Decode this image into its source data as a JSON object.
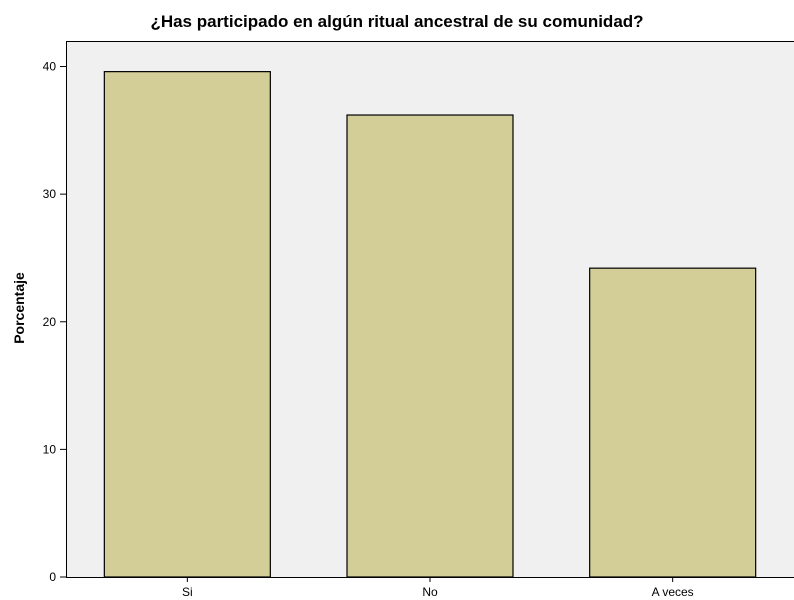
{
  "chart_data": {
    "type": "bar",
    "title": "¿Has participado en algún ritual ancestral de su comunidad?",
    "xlabel": "",
    "ylabel": "Porcentaje",
    "categories": [
      "Si",
      "No",
      "A veces"
    ],
    "values": [
      39.6,
      36.2,
      24.2
    ],
    "ylim": [
      0,
      42
    ],
    "yticks": [
      0,
      10,
      20,
      30,
      40
    ],
    "grid": false,
    "colors": {
      "bar_fill": "#d3cd97",
      "bar_stroke": "#000000",
      "plot_background": "#f0f0f0"
    }
  }
}
